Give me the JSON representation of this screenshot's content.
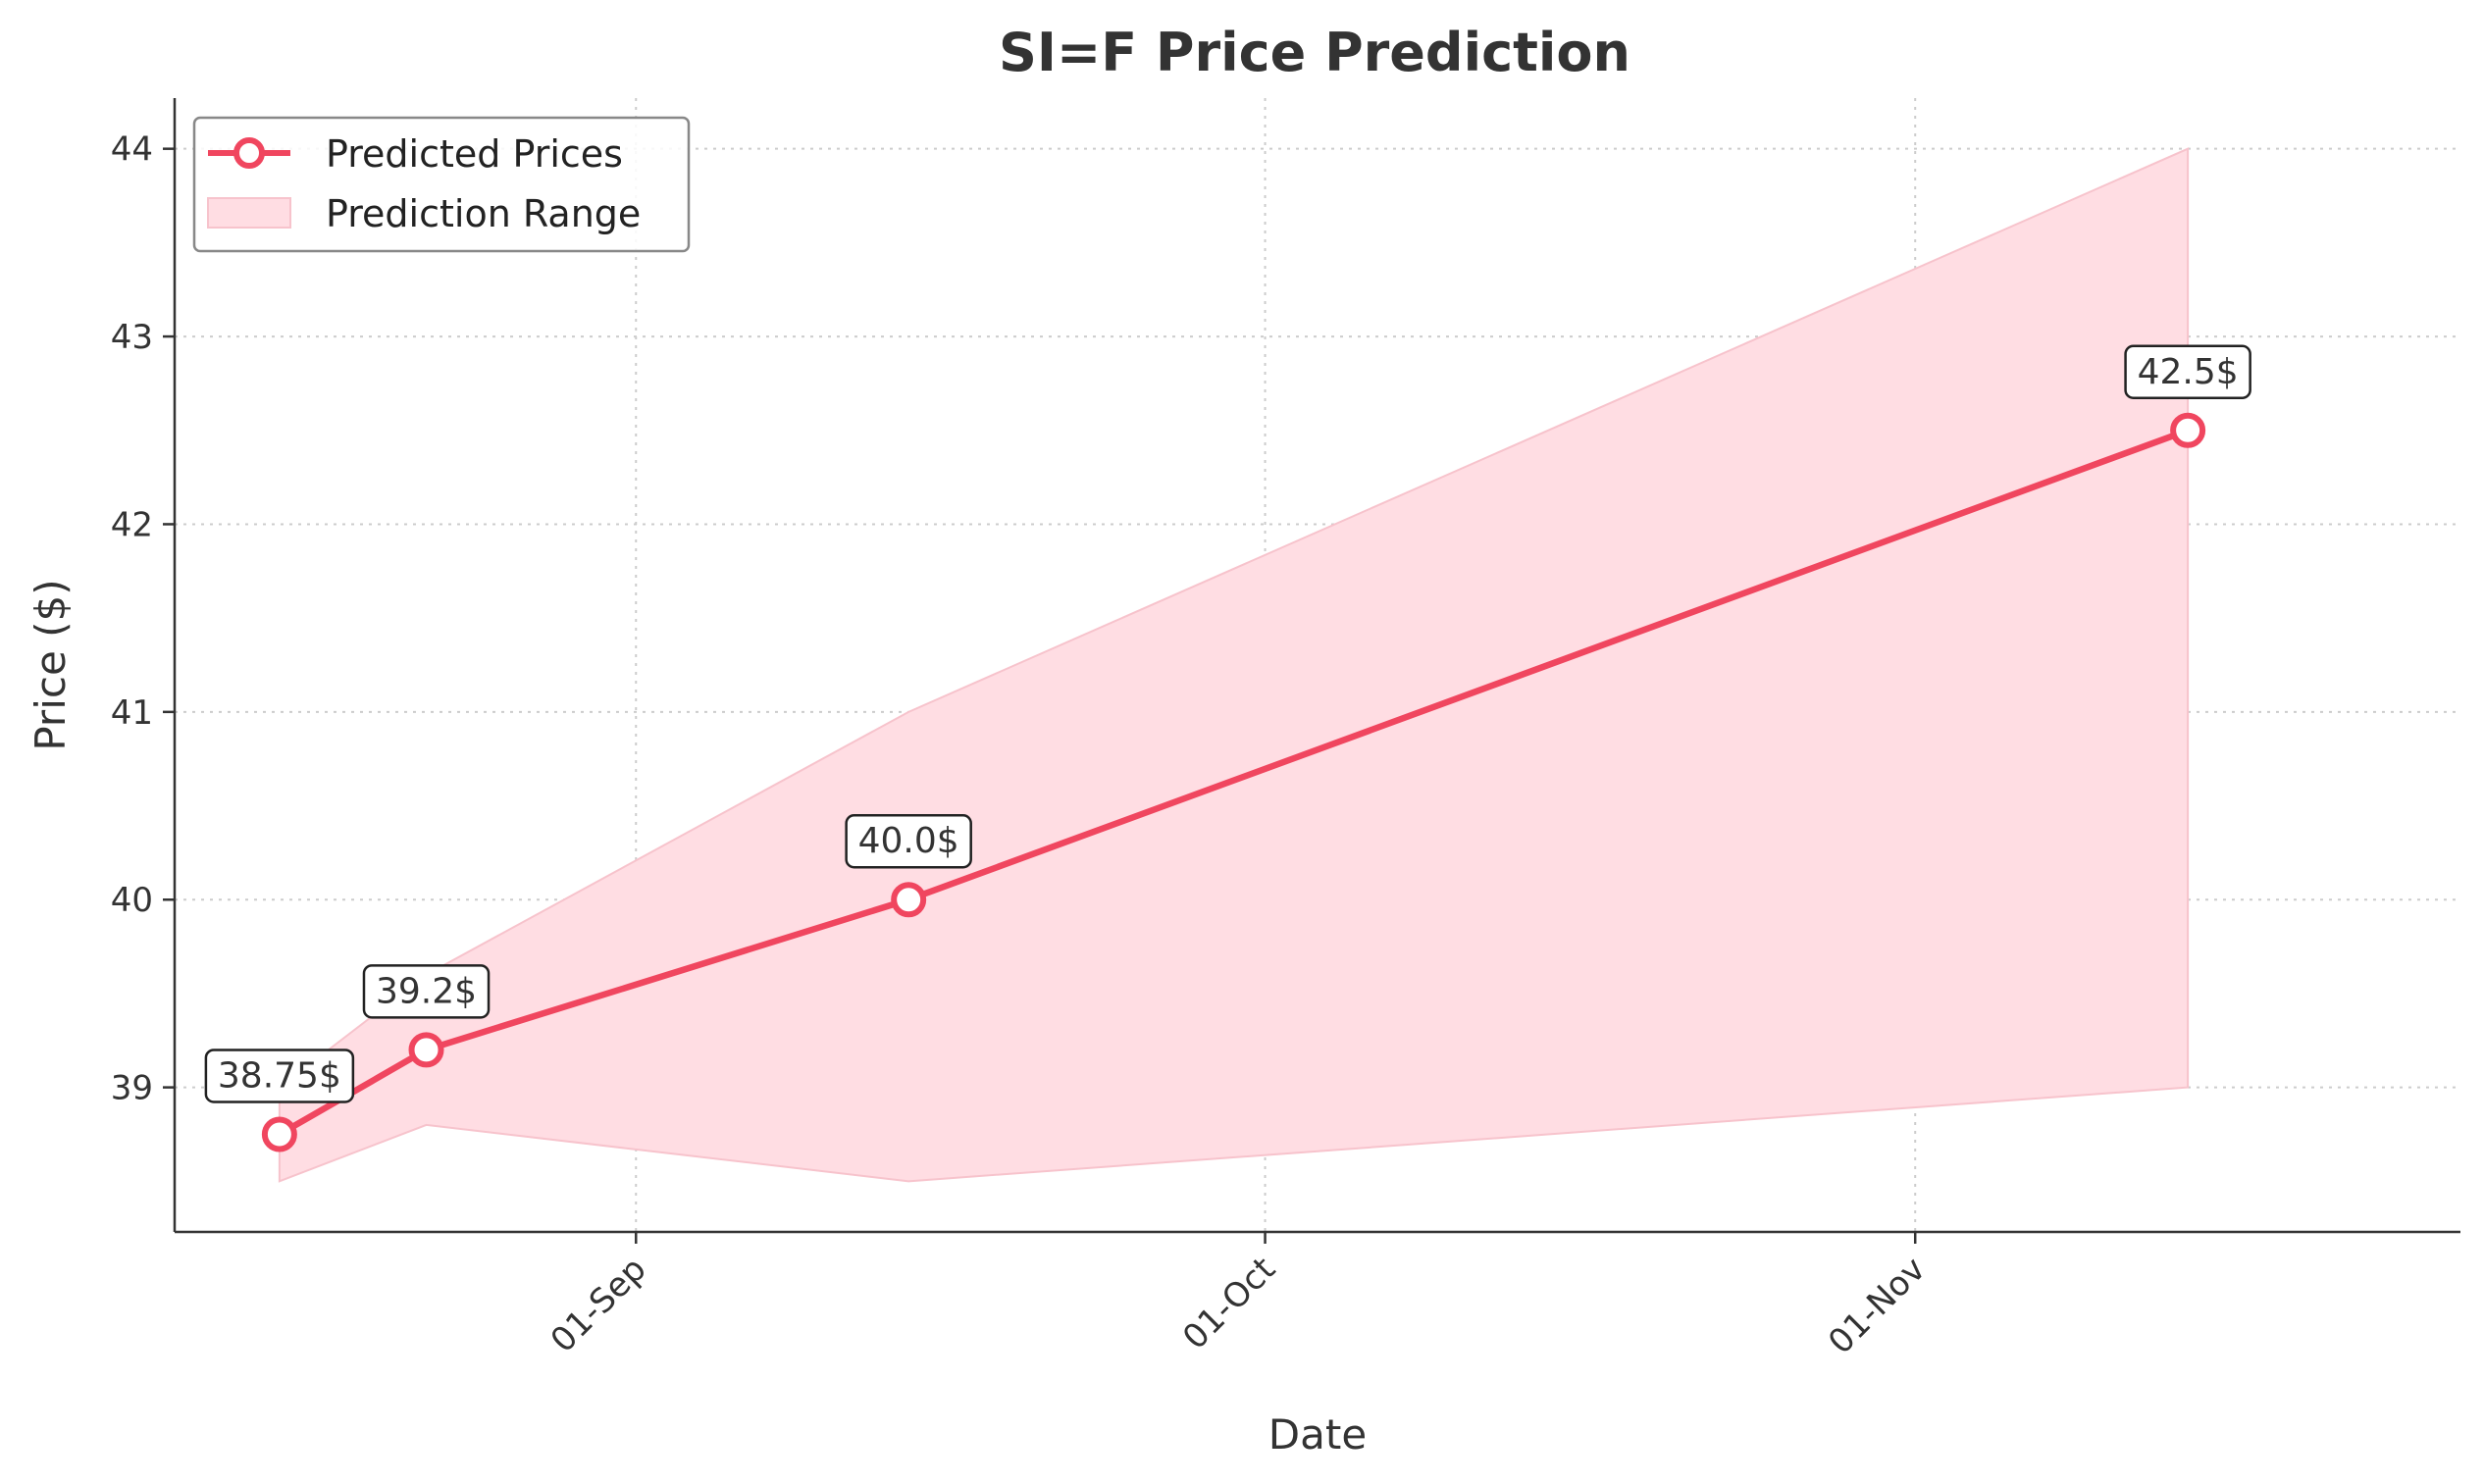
{
  "chart_data": {
    "type": "line",
    "title": "SI=F Price Prediction",
    "xlabel": "Date",
    "ylabel": "Price ($)",
    "x_ticks": [
      {
        "date": "2024-09-01",
        "label": "01-Sep"
      },
      {
        "date": "2024-10-01",
        "label": "01-Oct"
      },
      {
        "date": "2024-11-01",
        "label": "01-Nov"
      }
    ],
    "y_ticks": [
      39,
      40,
      41,
      42,
      43,
      44
    ],
    "xlim": [
      "2024-08-10",
      "2024-11-27"
    ],
    "ylim": [
      38.23,
      44.27
    ],
    "grid": true,
    "legend_placement": "top-left",
    "series": [
      {
        "name": "Predicted Prices",
        "color": "#f0465f",
        "points": [
          {
            "date": "2024-08-15",
            "value": 38.75,
            "label": "38.75$"
          },
          {
            "date": "2024-08-22",
            "value": 39.2,
            "label": "39.2$"
          },
          {
            "date": "2024-09-14",
            "value": 40.0,
            "label": "40.0$"
          },
          {
            "date": "2024-11-14",
            "value": 42.5,
            "label": "42.5$"
          }
        ]
      }
    ],
    "range": {
      "name": "Prediction Range",
      "color": "#ffdde3",
      "points": [
        {
          "date": "2024-08-15",
          "low": 38.5,
          "high": 39.0
        },
        {
          "date": "2024-08-22",
          "low": 38.8,
          "high": 39.6
        },
        {
          "date": "2024-09-14",
          "low": 38.5,
          "high": 41.0
        },
        {
          "date": "2024-11-14",
          "low": 39.0,
          "high": 44.0
        }
      ]
    }
  }
}
